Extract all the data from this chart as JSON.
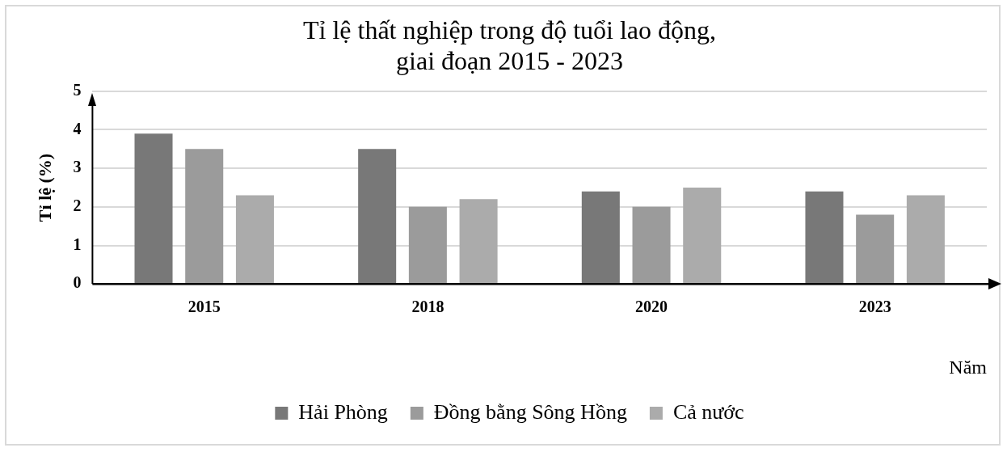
{
  "chart_data": {
    "type": "bar",
    "title": [
      "Tỉ lệ thất nghiệp trong độ tuổi lao động,",
      "giai đoạn 2015 - 2023"
    ],
    "xlabel": "Năm",
    "ylabel": "Tỉ lệ (%)",
    "categories": [
      "2015",
      "2018",
      "2020",
      "2023"
    ],
    "series": [
      {
        "name": "Hải Phòng",
        "color": "#787878",
        "values": [
          3.9,
          3.5,
          2.4,
          2.4
        ]
      },
      {
        "name": "Đồng bằng Sông Hồng",
        "color": "#9b9b9b",
        "values": [
          3.5,
          2.0,
          2.0,
          1.8
        ]
      },
      {
        "name": "Cả nước",
        "color": "#ababab",
        "values": [
          2.3,
          2.2,
          2.5,
          2.3
        ]
      }
    ],
    "ylim": [
      0,
      5
    ],
    "yticks": [
      0,
      1,
      2,
      3,
      4,
      5
    ],
    "grid": "y",
    "legend": "bottom"
  }
}
